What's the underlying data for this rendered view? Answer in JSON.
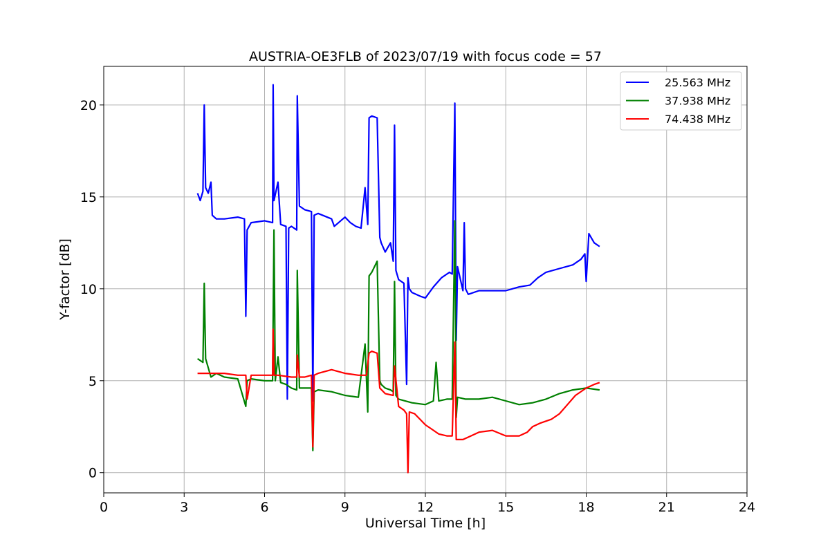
{
  "chart_data": {
    "type": "line",
    "title": "AUSTRIA-OE3FLB of 2023/07/19 with focus code = 57",
    "xlabel": "Universal Time [h]",
    "ylabel": "Y-factor [dB]",
    "xlim": [
      0,
      24
    ],
    "ylim": [
      -1.1,
      22.1
    ],
    "xticks": [
      0,
      3,
      6,
      9,
      12,
      15,
      18,
      21,
      24
    ],
    "yticks": [
      0,
      5,
      10,
      15,
      20
    ],
    "grid": true,
    "legend_position": "top-right",
    "series": [
      {
        "name": "25.563 MHz",
        "color": "#0000ff",
        "x": [
          3.5,
          3.6,
          3.7,
          3.75,
          3.8,
          3.9,
          4.0,
          4.05,
          4.2,
          4.5,
          5.0,
          5.25,
          5.3,
          5.35,
          5.5,
          6.0,
          6.3,
          6.32,
          6.35,
          6.5,
          6.6,
          6.8,
          6.85,
          6.9,
          7.0,
          7.2,
          7.22,
          7.3,
          7.5,
          7.75,
          7.8,
          7.85,
          8.0,
          8.5,
          8.6,
          9.0,
          9.2,
          9.4,
          9.6,
          9.75,
          9.85,
          9.9,
          10.0,
          10.2,
          10.3,
          10.35,
          10.5,
          10.7,
          10.8,
          10.85,
          10.9,
          11.0,
          11.2,
          11.3,
          11.35,
          11.4,
          11.5,
          11.8,
          12.0,
          12.3,
          12.6,
          12.9,
          13.0,
          13.1,
          13.15,
          13.2,
          13.4,
          13.45,
          13.5,
          13.6,
          14.0,
          14.5,
          15.0,
          15.5,
          15.9,
          16.2,
          16.5,
          17.0,
          17.5,
          17.8,
          17.95,
          18.0,
          18.1,
          18.3,
          18.5
        ],
        "y": [
          15.2,
          14.8,
          15.3,
          20.0,
          15.5,
          15.2,
          15.8,
          14.0,
          13.8,
          13.8,
          13.9,
          13.8,
          8.5,
          13.2,
          13.6,
          13.7,
          13.6,
          21.1,
          14.8,
          15.8,
          13.5,
          13.4,
          4.0,
          13.3,
          13.4,
          13.2,
          20.5,
          14.5,
          14.3,
          14.2,
          3.9,
          14.0,
          14.1,
          13.8,
          13.4,
          13.9,
          13.6,
          13.4,
          13.3,
          15.5,
          13.5,
          19.3,
          19.4,
          19.3,
          12.8,
          12.5,
          12.0,
          12.5,
          11.5,
          18.9,
          11.0,
          10.5,
          10.3,
          4.8,
          10.6,
          10.0,
          9.8,
          9.6,
          9.5,
          10.1,
          10.6,
          10.9,
          10.8,
          20.1,
          7.2,
          11.2,
          9.9,
          13.6,
          10.0,
          9.7,
          9.9,
          9.9,
          9.9,
          10.1,
          10.2,
          10.6,
          10.9,
          11.1,
          11.3,
          11.6,
          11.9,
          10.4,
          13.0,
          12.5,
          12.3
        ]
      },
      {
        "name": "37.938 MHz",
        "color": "#008000",
        "x": [
          3.5,
          3.7,
          3.75,
          3.8,
          4.0,
          4.2,
          4.5,
          5.0,
          5.3,
          5.35,
          5.5,
          6.0,
          6.3,
          6.35,
          6.4,
          6.5,
          6.6,
          6.8,
          7.0,
          7.2,
          7.22,
          7.3,
          7.5,
          7.75,
          7.8,
          7.85,
          8.0,
          8.5,
          9.0,
          9.5,
          9.75,
          9.85,
          9.9,
          10.0,
          10.2,
          10.3,
          10.35,
          10.5,
          10.7,
          10.8,
          10.85,
          10.9,
          11.0,
          11.5,
          12.0,
          12.3,
          12.4,
          12.5,
          12.8,
          13.0,
          13.1,
          13.15,
          13.2,
          13.5,
          14.0,
          14.5,
          15.0,
          15.5,
          16.0,
          16.5,
          17.0,
          17.5,
          18.0,
          18.5
        ],
        "y": [
          6.2,
          6.0,
          10.3,
          6.2,
          5.2,
          5.4,
          5.2,
          5.1,
          3.6,
          5.0,
          5.1,
          5.0,
          5.0,
          13.2,
          5.0,
          6.3,
          4.9,
          4.8,
          4.6,
          4.5,
          11.0,
          4.6,
          4.6,
          4.6,
          1.2,
          4.4,
          4.5,
          4.4,
          4.2,
          4.1,
          7.0,
          3.3,
          10.7,
          10.9,
          11.5,
          5.0,
          4.8,
          4.6,
          4.5,
          4.4,
          10.4,
          4.2,
          4.0,
          3.8,
          3.7,
          3.9,
          6.0,
          3.9,
          4.0,
          4.0,
          13.7,
          3.0,
          4.1,
          4.0,
          4.0,
          4.1,
          3.9,
          3.7,
          3.8,
          4.0,
          4.3,
          4.5,
          4.6,
          4.5
        ]
      },
      {
        "name": "74.438 MHz",
        "color": "#ff0000",
        "x": [
          3.5,
          4.0,
          4.5,
          5.0,
          5.3,
          5.35,
          5.5,
          6.0,
          6.3,
          6.32,
          6.35,
          6.5,
          7.0,
          7.2,
          7.22,
          7.3,
          7.5,
          7.75,
          7.8,
          7.85,
          8.0,
          8.5,
          9.0,
          9.5,
          9.8,
          9.9,
          10.0,
          10.2,
          10.3,
          10.5,
          10.8,
          10.85,
          11.0,
          11.2,
          11.3,
          11.35,
          11.4,
          11.6,
          11.8,
          12.0,
          12.2,
          12.5,
          12.8,
          13.0,
          13.1,
          13.15,
          13.4,
          13.7,
          14.0,
          14.5,
          15.0,
          15.5,
          15.8,
          16.0,
          16.3,
          16.7,
          17.0,
          17.3,
          17.6,
          18.0,
          18.3,
          18.5
        ],
        "y": [
          5.4,
          5.4,
          5.4,
          5.3,
          5.3,
          4.0,
          5.3,
          5.3,
          5.3,
          7.8,
          5.3,
          5.3,
          5.2,
          5.2,
          6.4,
          5.2,
          5.2,
          5.3,
          1.4,
          5.3,
          5.4,
          5.6,
          5.4,
          5.3,
          5.3,
          6.5,
          6.6,
          6.5,
          4.6,
          4.3,
          4.2,
          5.8,
          3.6,
          3.4,
          3.2,
          0.0,
          3.3,
          3.2,
          2.9,
          2.6,
          2.4,
          2.1,
          2.0,
          2.0,
          7.1,
          1.8,
          1.8,
          2.0,
          2.2,
          2.3,
          2.0,
          2.0,
          2.2,
          2.5,
          2.7,
          2.9,
          3.2,
          3.7,
          4.2,
          4.6,
          4.8,
          4.9
        ]
      }
    ]
  }
}
